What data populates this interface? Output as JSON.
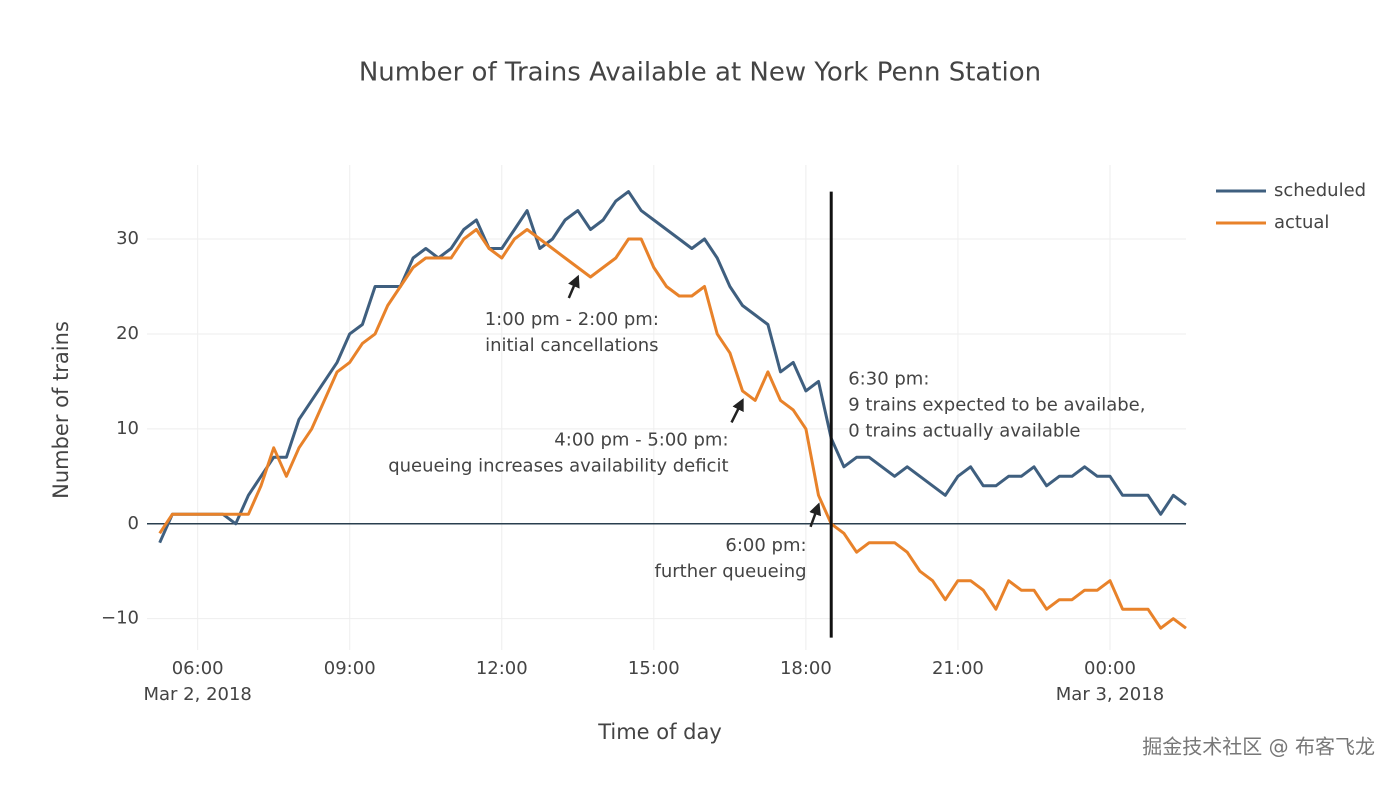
{
  "chart_data": {
    "type": "line",
    "title": "Number of Trains Available at New York Penn Station",
    "x_label": "Time of day",
    "y_label": "Number of trains",
    "x": [
      "2018-03-02 05:15",
      "2018-03-02 05:30",
      "2018-03-02 05:45",
      "2018-03-02 06:00",
      "2018-03-02 06:15",
      "2018-03-02 06:30",
      "2018-03-02 06:45",
      "2018-03-02 07:00",
      "2018-03-02 07:15",
      "2018-03-02 07:30",
      "2018-03-02 07:45",
      "2018-03-02 08:00",
      "2018-03-02 08:15",
      "2018-03-02 08:30",
      "2018-03-02 08:45",
      "2018-03-02 09:00",
      "2018-03-02 09:15",
      "2018-03-02 09:30",
      "2018-03-02 09:45",
      "2018-03-02 10:00",
      "2018-03-02 10:15",
      "2018-03-02 10:30",
      "2018-03-02 10:45",
      "2018-03-02 11:00",
      "2018-03-02 11:15",
      "2018-03-02 11:30",
      "2018-03-02 11:45",
      "2018-03-02 12:00",
      "2018-03-02 12:15",
      "2018-03-02 12:30",
      "2018-03-02 12:45",
      "2018-03-02 13:00",
      "2018-03-02 13:15",
      "2018-03-02 13:30",
      "2018-03-02 13:45",
      "2018-03-02 14:00",
      "2018-03-02 14:15",
      "2018-03-02 14:30",
      "2018-03-02 14:45",
      "2018-03-02 15:00",
      "2018-03-02 15:15",
      "2018-03-02 15:30",
      "2018-03-02 15:45",
      "2018-03-02 16:00",
      "2018-03-02 16:15",
      "2018-03-02 16:30",
      "2018-03-02 16:45",
      "2018-03-02 17:00",
      "2018-03-02 17:15",
      "2018-03-02 17:30",
      "2018-03-02 17:45",
      "2018-03-02 18:00",
      "2018-03-02 18:15",
      "2018-03-02 18:30",
      "2018-03-02 18:45",
      "2018-03-02 19:00",
      "2018-03-02 19:15",
      "2018-03-02 19:30",
      "2018-03-02 19:45",
      "2018-03-02 20:00",
      "2018-03-02 20:15",
      "2018-03-02 20:30",
      "2018-03-02 20:45",
      "2018-03-02 21:00",
      "2018-03-02 21:15",
      "2018-03-02 21:30",
      "2018-03-02 21:45",
      "2018-03-02 22:00",
      "2018-03-02 22:15",
      "2018-03-02 22:30",
      "2018-03-02 22:45",
      "2018-03-02 23:00",
      "2018-03-02 23:15",
      "2018-03-02 23:30",
      "2018-03-02 23:45",
      "2018-03-03 00:00",
      "2018-03-03 00:15",
      "2018-03-03 00:30",
      "2018-03-03 00:45",
      "2018-03-03 01:00",
      "2018-03-03 01:15",
      "2018-03-03 01:30"
    ],
    "series": [
      {
        "name": "scheduled",
        "color": "#3f5f7f",
        "values": [
          -2,
          1,
          1,
          1,
          1,
          1,
          0,
          3,
          5,
          7,
          7,
          11,
          13,
          15,
          17,
          20,
          21,
          25,
          25,
          25,
          28,
          29,
          28,
          29,
          31,
          32,
          29,
          29,
          31,
          33,
          29,
          30,
          32,
          33,
          31,
          32,
          34,
          35,
          33,
          32,
          31,
          30,
          29,
          30,
          28,
          25,
          23,
          22,
          21,
          16,
          17,
          14,
          15,
          9,
          6,
          7,
          7,
          6,
          5,
          6,
          5,
          4,
          3,
          5,
          6,
          4,
          4,
          5,
          5,
          6,
          4,
          5,
          5,
          6,
          5,
          5,
          3,
          3,
          3,
          1,
          3,
          2
        ]
      },
      {
        "name": "actual",
        "color": "#e8822a",
        "values": [
          -1,
          1,
          1,
          1,
          1,
          1,
          1,
          1,
          4,
          8,
          5,
          8,
          10,
          13,
          16,
          17,
          19,
          20,
          23,
          25,
          27,
          28,
          28,
          28,
          30,
          31,
          29,
          28,
          30,
          31,
          30,
          29,
          28,
          27,
          26,
          27,
          28,
          30,
          30,
          27,
          25,
          24,
          24,
          25,
          20,
          18,
          14,
          13,
          16,
          13,
          12,
          10,
          3,
          0,
          -1,
          -3,
          -2,
          -2,
          -2,
          -3,
          -5,
          -6,
          -8,
          -6,
          -6,
          -7,
          -9,
          -6,
          -7,
          -7,
          -9,
          -8,
          -8,
          -7,
          -7,
          -6,
          -9,
          -9,
          -9,
          -11,
          -10,
          -11
        ]
      }
    ],
    "xlim": [
      "2018-03-02 05:00",
      "2018-03-03 01:30"
    ],
    "xticks": [
      {
        "value": "2018-03-02 06:00",
        "label": "06:00"
      },
      {
        "value": "2018-03-02 09:00",
        "label": "09:00"
      },
      {
        "value": "2018-03-02 12:00",
        "label": "12:00"
      },
      {
        "value": "2018-03-02 15:00",
        "label": "15:00"
      },
      {
        "value": "2018-03-02 18:00",
        "label": "18:00"
      },
      {
        "value": "2018-03-02 21:00",
        "label": "21:00"
      },
      {
        "value": "2018-03-03 00:00",
        "label": "00:00"
      }
    ],
    "x_date_labels": [
      {
        "value": "2018-03-02 06:00",
        "label": "Mar 2, 2018"
      },
      {
        "value": "2018-03-03 00:00",
        "label": "Mar 3, 2018"
      }
    ],
    "ylim": [
      -13.3,
      37.8
    ],
    "yticks": [
      {
        "value": -10,
        "label": "−10"
      },
      0,
      10,
      20,
      30
    ],
    "grid": true,
    "zeroline": true,
    "legend": "top-right",
    "vline": {
      "x": "2018-03-02 18:30",
      "y0": -12,
      "y1": 35,
      "color": "#111"
    },
    "annotations": [
      {
        "lines": [
          "1:00 pm - 2:00 pm:",
          "initial cancellations"
        ],
        "x": "2018-03-02 13:30",
        "y": 26,
        "arrow": true
      },
      {
        "lines": [
          "4:00 pm - 5:00 pm:",
          "queueing increases availability deficit"
        ],
        "x": "2018-03-02 16:45",
        "y": 13,
        "arrow": true
      },
      {
        "lines": [
          "6:00 pm:",
          "further queueing"
        ],
        "x": "2018-03-02 18:15",
        "y": 2,
        "arrow": true
      },
      {
        "lines": [
          "6:30 pm:",
          "9 trains expected to be availabe,",
          "0 trains actually available"
        ],
        "x": "2018-03-02 18:30",
        "y": 15,
        "arrow": false
      }
    ],
    "watermark": "掘金技术社区 @ 布客飞龙"
  }
}
